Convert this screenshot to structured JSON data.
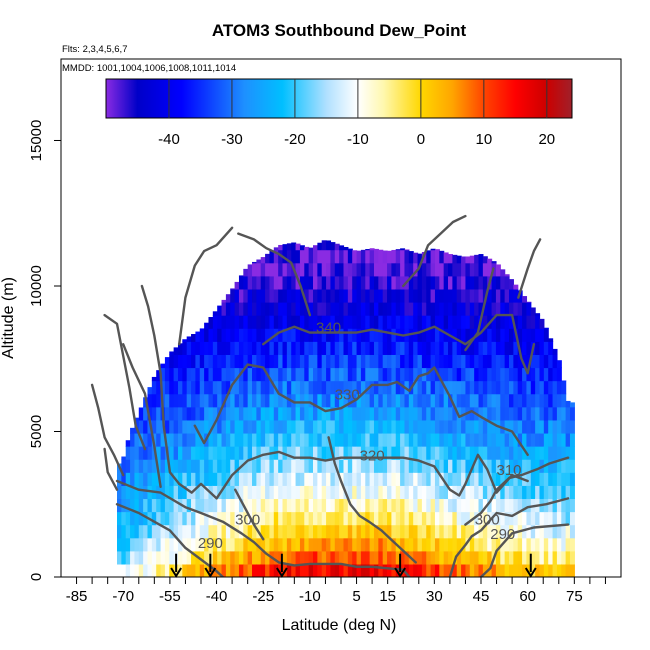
{
  "chart_data": {
    "type": "heatmap",
    "title": "ATOM3 Southbound Dew_Point",
    "subtitle_flights": "Flts: 2,3,4,5,6,7",
    "subtitle_dates": "MMDD: 1001,1004,1006,1008,1011,1014",
    "xlabel": "Latitude (deg N)",
    "ylabel": "Altitude (m)",
    "xlim": [
      -90,
      90
    ],
    "ylim": [
      0,
      17800
    ],
    "x_ticks": [
      -85,
      -70,
      -55,
      -40,
      -25,
      -10,
      5,
      15,
      30,
      45,
      60,
      75
    ],
    "x_tick_labels": [
      "-85",
      "-70",
      "-55",
      "-40",
      "-25",
      "-10",
      "5",
      "15",
      "30",
      "45",
      "60",
      "75"
    ],
    "x_minor_ticks": [
      -80,
      -75,
      -65,
      -60,
      -50,
      -45,
      -35,
      -30,
      -20,
      -15,
      -5,
      0,
      10,
      20,
      25,
      35,
      40,
      50,
      55,
      65,
      70,
      80,
      85
    ],
    "y_ticks": [
      0,
      5000,
      10000,
      15000
    ],
    "y_tick_labels": [
      "0",
      "5000",
      "10000",
      "15000"
    ],
    "colorbar": {
      "range": [
        -50,
        24
      ],
      "ticks": [
        -40,
        -30,
        -20,
        -10,
        0,
        10,
        20
      ],
      "tick_labels": [
        "-40",
        "-30",
        "-20",
        "-10",
        "0",
        "10",
        "20"
      ],
      "colors": [
        "#8a2be2",
        "#0000c8",
        "#0000ff",
        "#1e90ff",
        "#00bfff",
        "#b0e0ff",
        "#ffffff",
        "#fff8b0",
        "#ffd700",
        "#ffa500",
        "#ff4500",
        "#ff0000",
        "#cc0000",
        "#a0202a"
      ],
      "stops": [
        -50,
        -45,
        -38,
        -28,
        -22,
        -15,
        -10,
        -6,
        0,
        5,
        10,
        15,
        20,
        24
      ]
    },
    "profile_columns": [
      {
        "lat": -70.5,
        "top": 3900,
        "bottom": 500
      },
      {
        "lat": -68,
        "top": 4900,
        "bottom": 400
      },
      {
        "lat": -64,
        "top": 5900,
        "bottom": 300
      },
      {
        "lat": -60,
        "top": 6900,
        "bottom": 200
      },
      {
        "lat": -55,
        "top": 7700,
        "bottom": 100
      },
      {
        "lat": -50,
        "top": 8200,
        "bottom": 50
      },
      {
        "lat": -45,
        "top": 8500,
        "bottom": 0
      },
      {
        "lat": -40,
        "top": 9200,
        "bottom": 0
      },
      {
        "lat": -35,
        "top": 9900,
        "bottom": 0
      },
      {
        "lat": -30,
        "top": 10700,
        "bottom": 0
      },
      {
        "lat": -25,
        "top": 11000,
        "bottom": 0
      },
      {
        "lat": -20,
        "top": 11400,
        "bottom": 0
      },
      {
        "lat": -15,
        "top": 11500,
        "bottom": 0
      },
      {
        "lat": -10,
        "top": 11300,
        "bottom": 0
      },
      {
        "lat": -5,
        "top": 11600,
        "bottom": 0
      },
      {
        "lat": 0,
        "top": 11400,
        "bottom": 0
      },
      {
        "lat": 5,
        "top": 11200,
        "bottom": 0
      },
      {
        "lat": 10,
        "top": 11300,
        "bottom": 0
      },
      {
        "lat": 15,
        "top": 11200,
        "bottom": 0
      },
      {
        "lat": 20,
        "top": 11300,
        "bottom": 0
      },
      {
        "lat": 25,
        "top": 11100,
        "bottom": 0
      },
      {
        "lat": 30,
        "top": 11300,
        "bottom": 0
      },
      {
        "lat": 35,
        "top": 11100,
        "bottom": 0
      },
      {
        "lat": 40,
        "top": 11000,
        "bottom": 0
      },
      {
        "lat": 45,
        "top": 11100,
        "bottom": 0
      },
      {
        "lat": 50,
        "top": 10800,
        "bottom": 0
      },
      {
        "lat": 55,
        "top": 10200,
        "bottom": 0
      },
      {
        "lat": 60,
        "top": 9500,
        "bottom": 0
      },
      {
        "lat": 65,
        "top": 8800,
        "bottom": 0
      },
      {
        "lat": 70,
        "top": 7500,
        "bottom": 0
      },
      {
        "lat": 73,
        "top": 6000,
        "bottom": 0
      }
    ],
    "value_model": {
      "surface_dew_point_by_lat": [
        [
          -72,
          -12
        ],
        [
          -60,
          -3
        ],
        [
          -50,
          4
        ],
        [
          -40,
          10
        ],
        [
          -30,
          16
        ],
        [
          -20,
          21
        ],
        [
          -10,
          23
        ],
        [
          0,
          22
        ],
        [
          10,
          23
        ],
        [
          20,
          21
        ],
        [
          30,
          17
        ],
        [
          40,
          13
        ],
        [
          50,
          9
        ],
        [
          60,
          6
        ],
        [
          73,
          4
        ]
      ],
      "tropopause_dew_point": -48
    },
    "theta_contours": [
      {
        "label": "290",
        "label_lat": -42,
        "label_alt": 1000,
        "points": [
          [
            -72,
            2500
          ],
          [
            -65,
            2200
          ],
          [
            -60,
            1900
          ],
          [
            -55,
            1600
          ],
          [
            -50,
            1000
          ],
          [
            -45,
            600
          ],
          [
            -40,
            200
          ],
          [
            -38,
            0
          ]
        ]
      },
      {
        "label": "290",
        "label_lat": 52,
        "label_alt": 1300,
        "points": [
          [
            45,
            0
          ],
          [
            48,
            300
          ],
          [
            50,
            900
          ],
          [
            55,
            1500
          ],
          [
            62,
            1700
          ],
          [
            73,
            1800
          ]
        ]
      },
      {
        "label": "300",
        "label_lat": -30,
        "label_alt": 1800,
        "points": [
          [
            -72,
            3300
          ],
          [
            -65,
            3000
          ],
          [
            -58,
            2900
          ],
          [
            -50,
            2400
          ],
          [
            -45,
            2200
          ],
          [
            -38,
            1900
          ],
          [
            -32,
            1500
          ],
          [
            -28,
            1200
          ],
          [
            -24,
            800
          ],
          [
            -20,
            500
          ],
          [
            -15,
            400
          ],
          [
            -10,
            450
          ],
          [
            -5,
            450
          ],
          [
            0,
            450
          ],
          [
            5,
            350
          ],
          [
            10,
            350
          ],
          [
            15,
            300
          ],
          [
            20,
            250
          ],
          [
            22,
            0
          ]
        ]
      },
      {
        "label": "300",
        "label_lat": 47,
        "label_alt": 1800,
        "points": [
          [
            35,
            0
          ],
          [
            37,
            700
          ],
          [
            40,
            1100
          ],
          [
            42,
            1400
          ],
          [
            45,
            1600
          ],
          [
            50,
            2200
          ],
          [
            55,
            2100
          ],
          [
            60,
            2400
          ],
          [
            66,
            2500
          ],
          [
            73,
            2700
          ]
        ]
      },
      {
        "label": "310",
        "label_lat": 54,
        "label_alt": 3500,
        "points": [
          [
            40,
            1800
          ],
          [
            45,
            2200
          ],
          [
            48,
            2600
          ],
          [
            50,
            3000
          ],
          [
            54,
            3400
          ],
          [
            58,
            3500
          ],
          [
            63,
            3700
          ],
          [
            67,
            3900
          ],
          [
            73,
            4100
          ]
        ]
      },
      {
        "label": "320",
        "label_lat": 10,
        "label_alt": 4000,
        "points": [
          [
            -52,
            3200
          ],
          [
            -48,
            2900
          ],
          [
            -45,
            3200
          ],
          [
            -40,
            2700
          ],
          [
            -35,
            3500
          ],
          [
            -30,
            4000
          ],
          [
            -25,
            4200
          ],
          [
            -20,
            4300
          ],
          [
            -15,
            4100
          ],
          [
            -10,
            4100
          ],
          [
            -5,
            4000
          ],
          [
            0,
            4100
          ],
          [
            5,
            4100
          ],
          [
            10,
            4100
          ],
          [
            15,
            4100
          ],
          [
            20,
            4100
          ],
          [
            25,
            4000
          ],
          [
            30,
            3800
          ],
          [
            35,
            3000
          ],
          [
            38,
            2800
          ],
          [
            40,
            3200
          ],
          [
            44,
            4200
          ],
          [
            47,
            3700
          ],
          [
            50,
            2900
          ],
          [
            55,
            3500
          ],
          [
            60,
            3300
          ]
        ]
      },
      {
        "label": "330",
        "label_lat": 2,
        "label_alt": 6100,
        "points": [
          [
            -47,
            5200
          ],
          [
            -44,
            4600
          ],
          [
            -40,
            5400
          ],
          [
            -35,
            6600
          ],
          [
            -30,
            7300
          ],
          [
            -25,
            7200
          ],
          [
            -20,
            6300
          ],
          [
            -15,
            6000
          ],
          [
            -10,
            6000
          ],
          [
            -5,
            5700
          ],
          [
            0,
            5800
          ],
          [
            5,
            6100
          ],
          [
            10,
            6600
          ],
          [
            15,
            6600
          ],
          [
            18,
            6700
          ],
          [
            22,
            6400
          ],
          [
            25,
            6900
          ],
          [
            28,
            7000
          ],
          [
            30,
            7200
          ],
          [
            35,
            6200
          ],
          [
            38,
            5500
          ],
          [
            42,
            5700
          ],
          [
            45,
            5500
          ],
          [
            50,
            5200
          ],
          [
            55,
            5000
          ],
          [
            60,
            4200
          ]
        ]
      },
      {
        "label": "340",
        "label_lat": -4,
        "label_alt": 8400,
        "points": [
          [
            -25,
            8000
          ],
          [
            -20,
            8400
          ],
          [
            -15,
            8600
          ],
          [
            -10,
            8400
          ],
          [
            -5,
            8400
          ],
          [
            0,
            8400
          ],
          [
            5,
            8400
          ],
          [
            10,
            8500
          ],
          [
            15,
            8400
          ],
          [
            20,
            8300
          ],
          [
            25,
            8400
          ],
          [
            30,
            8600
          ],
          [
            35,
            8300
          ],
          [
            40,
            8000
          ],
          [
            45,
            8400
          ],
          [
            50,
            9000
          ],
          [
            55,
            9000
          ],
          [
            58,
            7500
          ],
          [
            60,
            7000
          ],
          [
            62,
            8000
          ]
        ]
      }
    ],
    "extra_contours": [
      [
        [
          -33,
          11800
        ],
        [
          -28,
          11600
        ],
        [
          -24,
          11300
        ],
        [
          -20,
          11100
        ],
        [
          -16,
          10800
        ],
        [
          -13,
          10000
        ],
        [
          -10,
          9000
        ]
      ],
      [
        [
          -35,
          12000
        ],
        [
          -40,
          11400
        ],
        [
          -44,
          11200
        ],
        [
          -47,
          10700
        ],
        [
          -50,
          9600
        ],
        [
          -52,
          8000
        ]
      ],
      [
        [
          -64,
          10000
        ],
        [
          -62,
          9300
        ],
        [
          -60,
          8300
        ],
        [
          -58,
          7000
        ],
        [
          -57,
          5200
        ],
        [
          -55,
          3600
        ],
        [
          -52,
          3200
        ]
      ],
      [
        [
          -70,
          8000
        ],
        [
          -67,
          7200
        ],
        [
          -63,
          6300
        ],
        [
          -60,
          4500
        ],
        [
          -58,
          3100
        ]
      ],
      [
        [
          -76,
          9000
        ],
        [
          -72,
          8700
        ],
        [
          -70,
          7600
        ],
        [
          -68,
          6500
        ],
        [
          -66,
          5200
        ],
        [
          -63,
          4400
        ]
      ],
      [
        [
          -80,
          6600
        ],
        [
          -78,
          5800
        ],
        [
          -76,
          4800
        ],
        [
          -73,
          4200
        ],
        [
          -70,
          3500
        ]
      ],
      [
        [
          -76,
          4400
        ],
        [
          -75,
          3600
        ],
        [
          -72,
          3000
        ]
      ],
      [
        [
          20,
          10000
        ],
        [
          25,
          10600
        ],
        [
          28,
          11400
        ],
        [
          32,
          11800
        ],
        [
          36,
          12200
        ],
        [
          40,
          12400
        ]
      ],
      [
        [
          40,
          7800
        ],
        [
          44,
          8400
        ],
        [
          47,
          9800
        ],
        [
          49,
          10600
        ]
      ],
      [
        [
          57,
          9600
        ],
        [
          60,
          10600
        ],
        [
          62,
          11200
        ],
        [
          64,
          11600
        ]
      ],
      [
        [
          -4,
          4800
        ],
        [
          -2,
          3900
        ],
        [
          0,
          3300
        ],
        [
          3,
          2500
        ],
        [
          6,
          2100
        ],
        [
          9,
          1900
        ],
        [
          13,
          1600
        ],
        [
          16,
          1300
        ],
        [
          20,
          900
        ],
        [
          24,
          500
        ]
      ],
      [
        [
          -34,
          3000
        ],
        [
          -31,
          2400
        ],
        [
          -28,
          1800
        ],
        [
          -25,
          1300
        ]
      ]
    ],
    "flight_arrows_lat": [
      -53,
      -42,
      -19,
      19,
      61
    ]
  }
}
